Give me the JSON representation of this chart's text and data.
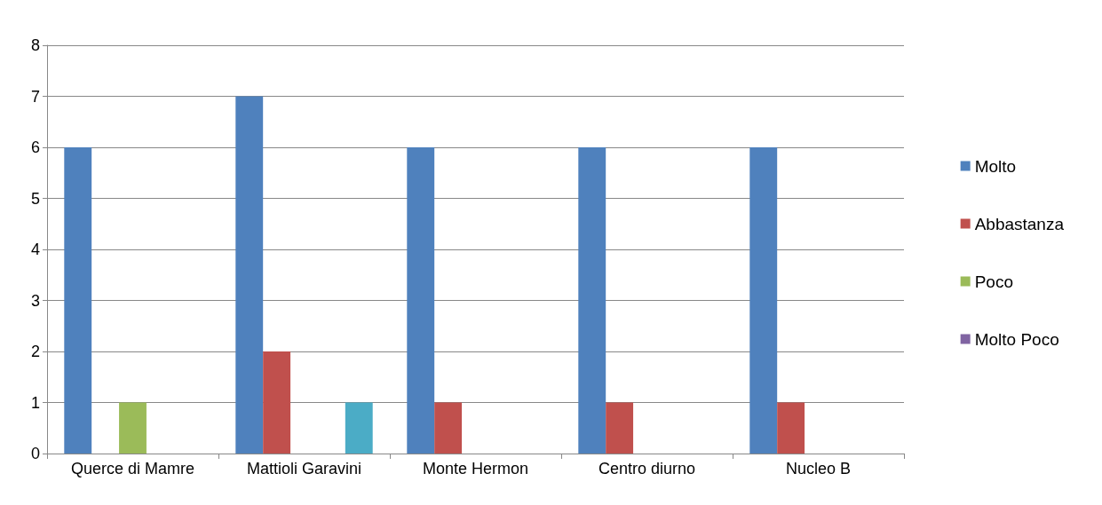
{
  "chart_data": {
    "type": "bar",
    "categories": [
      "Querce di Mamre",
      "Mattioli Garavini",
      "Monte Hermon",
      "Centro diurno",
      "Nucleo B"
    ],
    "series": [
      {
        "name": "Molto",
        "color": "#4f81bd",
        "values": [
          6,
          7,
          6,
          6,
          6
        ]
      },
      {
        "name": "Abbastanza",
        "color": "#c0504d",
        "values": [
          null,
          2,
          1,
          1,
          1
        ]
      },
      {
        "name": "Poco",
        "color": "#9bbb59",
        "values": [
          1,
          null,
          null,
          null,
          null
        ]
      },
      {
        "name": "Molto Poco",
        "color": "#8064a2",
        "values": [
          null,
          null,
          null,
          null,
          null
        ]
      },
      {
        "color": "#4bacc6",
        "values": [
          null,
          1,
          null,
          null,
          null
        ]
      }
    ],
    "ylim": [
      0,
      8
    ],
    "yticks": [
      0,
      1,
      2,
      3,
      4,
      5,
      6,
      7,
      8
    ],
    "grid": "y",
    "legend": "right"
  }
}
